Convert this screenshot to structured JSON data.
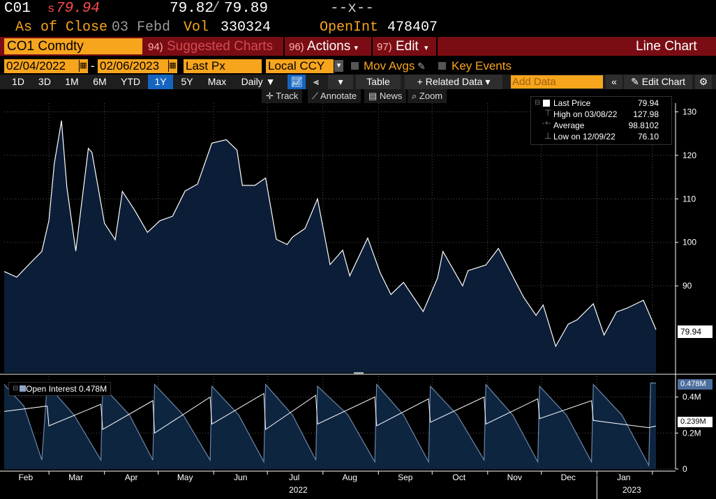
{
  "quote": {
    "ticker": "C01",
    "last_prefix": "s",
    "last": "79.94",
    "bid": "79.82",
    "slash": "/",
    "ask": "79.89",
    "change": "--x--",
    "as_of_label": "As of Close",
    "as_of_date": "03 Febd",
    "vol_label": "Vol",
    "vol": "330324",
    "oi_label": "OpenInt",
    "oi": "478407"
  },
  "command_bar": {
    "security": "CO1 Comdty",
    "suggested_num": "94)",
    "suggested_label": "Suggested Charts",
    "actions_num": "96)",
    "actions_label": "Actions",
    "edit_num": "97)",
    "edit_label": "Edit",
    "chart_type": "Line Chart"
  },
  "controls": {
    "start_date": "02/04/2022",
    "dash": "-",
    "end_date": "02/06/2023",
    "field": "Last Px",
    "currency": "Local CCY",
    "mov_avgs": "Mov Avgs",
    "key_events": "Key Events"
  },
  "ranges": {
    "items": [
      "1D",
      "3D",
      "1M",
      "6M",
      "YTD",
      "1Y",
      "5Y",
      "Max"
    ],
    "active": "1Y",
    "periodicity": "Daily",
    "table": "Table",
    "related_data": "Related Data",
    "add_data_placeholder": "Add Data",
    "edit_chart": "Edit Chart"
  },
  "tools": {
    "track": "Track",
    "annotate": "Annotate",
    "news": "News",
    "zoom": "Zoom"
  },
  "legend": {
    "last_price_label": "Last Price",
    "last_price_value": "79.94",
    "high_label": "High on 03/08/22",
    "high_value": "127.98",
    "average_label": "Average",
    "average_value": "98.8102",
    "low_label": "Low on 12/09/22",
    "low_value": "76.10"
  },
  "last_badge": "79.94",
  "oi_legend": "Open Interest 0.478M",
  "oi_badge_top": "0.478M",
  "oi_badge_mid": "0.239M",
  "year_labels": [
    "2022",
    "2023"
  ],
  "colors": {
    "background": "#000000",
    "area_fill": "#0c1e37",
    "line": "#ffffff",
    "accent_orange": "#f7a51d",
    "bar_red": "#7a0d14",
    "last_red": "#ff4b4b",
    "oi_fill": "#0e2540",
    "oi_line": "#6e86a8"
  },
  "chart_data": [
    {
      "type": "area",
      "title": "CO1 Comdty",
      "series": [
        {
          "name": "Last Price",
          "x": [
            "2022-02-04",
            "2022-02-11",
            "2022-02-18",
            "2022-02-25",
            "2022-03-01",
            "2022-03-04",
            "2022-03-08",
            "2022-03-11",
            "2022-03-16",
            "2022-03-23",
            "2022-03-25",
            "2022-04-01",
            "2022-04-07",
            "2022-04-11",
            "2022-04-18",
            "2022-04-25",
            "2022-05-02",
            "2022-05-09",
            "2022-05-16",
            "2022-05-23",
            "2022-05-31",
            "2022-06-08",
            "2022-06-14",
            "2022-06-17",
            "2022-06-24",
            "2022-06-30",
            "2022-07-06",
            "2022-07-12",
            "2022-07-15",
            "2022-07-22",
            "2022-07-29",
            "2022-08-05",
            "2022-08-12",
            "2022-08-16",
            "2022-08-26",
            "2022-09-02",
            "2022-09-08",
            "2022-09-15",
            "2022-09-26",
            "2022-10-04",
            "2022-10-07",
            "2022-10-18",
            "2022-10-21",
            "2022-10-31",
            "2022-11-07",
            "2022-11-14",
            "2022-11-21",
            "2022-11-28",
            "2022-12-02",
            "2022-12-09",
            "2022-12-16",
            "2022-12-21",
            "2022-12-30",
            "2023-01-05",
            "2023-01-12",
            "2023-01-18",
            "2023-01-24",
            "2023-01-27",
            "2023-02-03"
          ],
          "values": [
            93.3,
            92.0,
            95.0,
            97.9,
            105.0,
            118.1,
            127.98,
            112.7,
            98.0,
            121.6,
            120.7,
            104.4,
            100.6,
            111.7,
            107.3,
            102.3,
            104.97,
            106.0,
            111.8,
            113.4,
            122.8,
            123.6,
            121.2,
            113.1,
            113.1,
            114.8,
            100.7,
            99.5,
            101.2,
            103.2,
            110.0,
            94.9,
            98.2,
            92.3,
            100.99,
            93.0,
            88.0,
            90.8,
            84.1,
            91.8,
            97.9,
            90.0,
            93.5,
            94.8,
            98.6,
            93.0,
            87.45,
            83.2,
            85.6,
            76.1,
            81.2,
            82.2,
            85.9,
            78.7,
            84.0,
            84.9,
            86.1,
            86.7,
            79.94
          ]
        }
      ],
      "ylabel": "",
      "xlabel": "",
      "ylim": [
        70,
        132
      ],
      "yticks": [
        90,
        100,
        110,
        120,
        130
      ],
      "x_tick_labels": [
        "Feb",
        "Mar",
        "Apr",
        "May",
        "Jun",
        "Jul",
        "Aug",
        "Sep",
        "Oct",
        "Nov",
        "Dec",
        "Jan"
      ],
      "grid": true,
      "legend_position": "top-right",
      "y_axis_side": "right"
    },
    {
      "type": "area",
      "title": "Open Interest",
      "series": [
        {
          "name": "Open Interest",
          "unit": "M",
          "x": [
            "2022-02-04",
            "2022-02-15",
            "2022-02-25",
            "2022-02-28",
            "2022-03-15",
            "2022-03-30",
            "2022-03-31",
            "2022-04-15",
            "2022-04-28",
            "2022-04-29",
            "2022-05-15",
            "2022-05-30",
            "2022-05-31",
            "2022-06-15",
            "2022-06-29",
            "2022-06-30",
            "2022-07-15",
            "2022-07-28",
            "2022-07-29",
            "2022-08-15",
            "2022-08-30",
            "2022-08-31",
            "2022-09-15",
            "2022-09-29",
            "2022-09-30",
            "2022-10-15",
            "2022-10-30",
            "2022-10-31",
            "2022-11-15",
            "2022-11-29",
            "2022-11-30",
            "2022-12-15",
            "2022-12-29",
            "2022-12-30",
            "2023-01-15",
            "2023-01-30",
            "2023-01-31",
            "2023-02-03"
          ],
          "values": [
            0.47,
            0.35,
            0.05,
            0.47,
            0.3,
            0.05,
            0.46,
            0.3,
            0.05,
            0.47,
            0.3,
            0.05,
            0.46,
            0.3,
            0.04,
            0.47,
            0.3,
            0.05,
            0.46,
            0.3,
            0.04,
            0.47,
            0.3,
            0.04,
            0.46,
            0.3,
            0.05,
            0.47,
            0.3,
            0.04,
            0.46,
            0.3,
            0.04,
            0.47,
            0.3,
            0.02,
            0.478,
            0.478
          ]
        },
        {
          "name": "Open Interest line",
          "unit": "M",
          "x": [
            "2022-02-04",
            "2022-02-28",
            "2022-03-01",
            "2022-03-30",
            "2022-03-31",
            "2022-04-28",
            "2022-04-29",
            "2022-05-30",
            "2022-05-31",
            "2022-06-29",
            "2022-06-30",
            "2022-07-28",
            "2022-07-29",
            "2022-08-30",
            "2022-08-31",
            "2022-09-29",
            "2022-09-30",
            "2022-10-30",
            "2022-10-31",
            "2022-11-29",
            "2022-11-30",
            "2022-12-29",
            "2022-12-30",
            "2023-01-30",
            "2023-02-03"
          ],
          "values": [
            0.32,
            0.35,
            0.24,
            0.36,
            0.22,
            0.38,
            0.2,
            0.4,
            0.25,
            0.42,
            0.22,
            0.41,
            0.25,
            0.4,
            0.24,
            0.39,
            0.26,
            0.4,
            0.25,
            0.39,
            0.28,
            0.38,
            0.27,
            0.23,
            0.239
          ]
        }
      ],
      "ylim": [
        0,
        0.55
      ],
      "yticks": [
        0,
        0.2,
        0.4
      ],
      "ytick_labels": [
        "0",
        "0.2M",
        "0.4M"
      ],
      "y_axis_side": "right"
    }
  ]
}
